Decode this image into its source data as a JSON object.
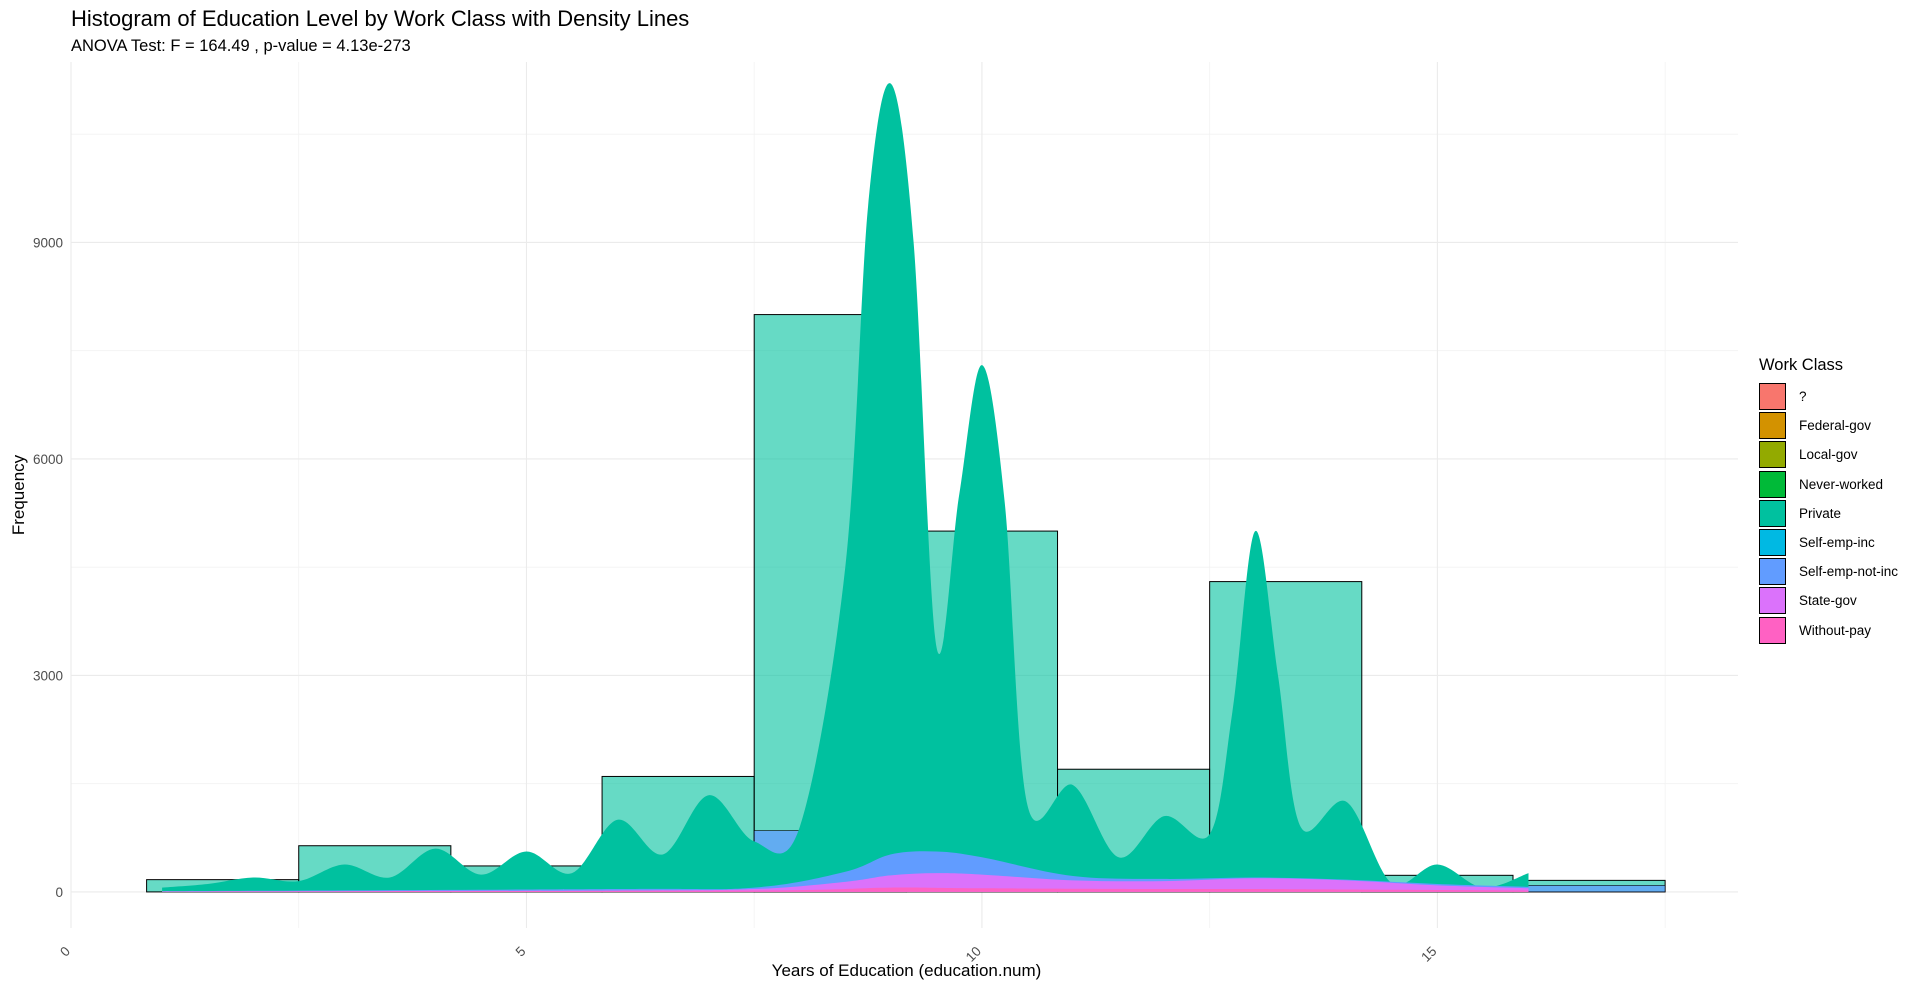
{
  "chart_data": {
    "type": "bar",
    "title": "Histogram of Education Level by Work Class with Density Lines",
    "subtitle": "ANOVA Test: F = 164.49 , p-value = 4.13e-273",
    "xlabel": "Years of Education (education.num)",
    "ylabel": "Frequency",
    "xlim": [
      0,
      18.3
    ],
    "ylim": [
      -500,
      11500
    ],
    "x_ticks": [
      0,
      5,
      10,
      15
    ],
    "y_ticks": [
      0,
      3000,
      6000,
      9000
    ],
    "grid": true,
    "legend_position": "right",
    "legend_title": "Work Class",
    "series": [
      {
        "name": "?",
        "color": "#F8766D"
      },
      {
        "name": "Federal-gov",
        "color": "#D39200"
      },
      {
        "name": "Local-gov",
        "color": "#93AA00"
      },
      {
        "name": "Never-worked",
        "color": "#00BA38"
      },
      {
        "name": "Private",
        "color": "#00C19F"
      },
      {
        "name": "Self-emp-inc",
        "color": "#00B9E3"
      },
      {
        "name": "Self-emp-not-inc",
        "color": "#619CFF"
      },
      {
        "name": "State-gov",
        "color": "#DB72FB"
      },
      {
        "name": "Without-pay",
        "color": "#FF61C3"
      }
    ],
    "histogram": {
      "series": "Private",
      "bins": [
        {
          "x0": 0.83,
          "x1": 2.5,
          "value": 170
        },
        {
          "x0": 2.5,
          "x1": 4.17,
          "value": 640
        },
        {
          "x0": 4.17,
          "x1": 5.83,
          "value": 360
        },
        {
          "x0": 5.83,
          "x1": 7.5,
          "value": 1600
        },
        {
          "x0": 7.5,
          "x1": 9.17,
          "value": 8000
        },
        {
          "x0": 9.17,
          "x1": 10.83,
          "value": 5000
        },
        {
          "x0": 10.83,
          "x1": 12.5,
          "value": 1700
        },
        {
          "x0": 12.5,
          "x1": 14.17,
          "value": 4300
        },
        {
          "x0": 14.17,
          "x1": 15.83,
          "value": 230
        },
        {
          "x0": 15.83,
          "x1": 17.5,
          "value": 160
        }
      ],
      "stacked_other_bins": [
        {
          "x0": 7.5,
          "x1": 9.17,
          "series": "Self-emp-not-inc",
          "value": 850
        },
        {
          "x0": 14.17,
          "x1": 15.83,
          "series": "Self-emp-not-inc",
          "value": 60
        },
        {
          "x0": 15.83,
          "x1": 17.5,
          "series": "Self-emp-not-inc",
          "value": 90
        }
      ]
    },
    "density": [
      {
        "series": "Private",
        "x": [
          1,
          1.5,
          2,
          2.5,
          3,
          3.5,
          4,
          4.5,
          5,
          5.5,
          6,
          6.5,
          7,
          7.5,
          8,
          8.5,
          8.75,
          9,
          9.25,
          9.5,
          9.75,
          10,
          10.25,
          10.5,
          11,
          11.5,
          12,
          12.5,
          12.75,
          13,
          13.25,
          13.5,
          14,
          14.5,
          15,
          15.5,
          16
        ],
        "y": [
          60,
          110,
          200,
          150,
          380,
          200,
          600,
          240,
          560,
          260,
          1000,
          520,
          1340,
          700,
          900,
          4500,
          9500,
          11200,
          9000,
          3400,
          5500,
          7300,
          5400,
          1200,
          1480,
          480,
          1050,
          800,
          2500,
          5000,
          3000,
          900,
          1250,
          120,
          380,
          60,
          260
        ]
      },
      {
        "series": "Self-emp-not-inc",
        "x": [
          1,
          6,
          7.5,
          8.5,
          9,
          9.5,
          10,
          11,
          12,
          13,
          14,
          15,
          16
        ],
        "y": [
          10,
          40,
          60,
          280,
          520,
          560,
          480,
          220,
          180,
          200,
          170,
          110,
          70
        ]
      },
      {
        "series": "State-gov",
        "x": [
          1,
          6,
          7.5,
          8.5,
          9,
          9.5,
          10,
          11,
          12,
          13,
          14,
          15,
          16
        ],
        "y": [
          5,
          20,
          40,
          140,
          230,
          260,
          240,
          160,
          150,
          190,
          160,
          90,
          50
        ]
      },
      {
        "series": "Without-pay",
        "x": [
          1,
          6,
          8,
          9,
          10,
          12,
          13,
          16
        ],
        "y": [
          5,
          15,
          25,
          60,
          50,
          40,
          40,
          20
        ]
      }
    ]
  }
}
